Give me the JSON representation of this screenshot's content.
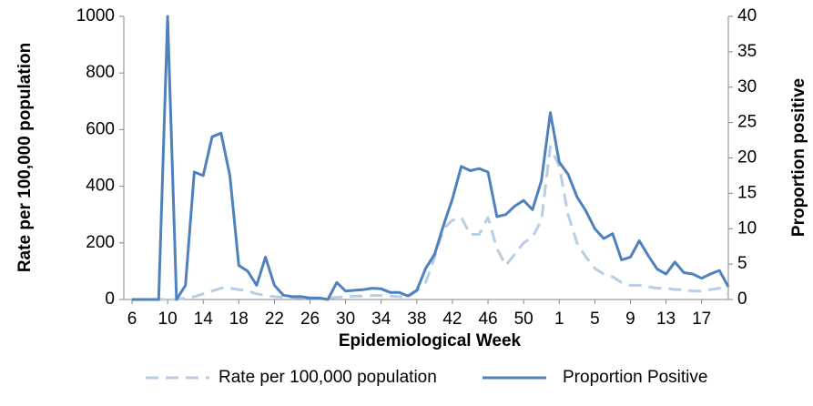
{
  "chart_data": {
    "type": "line",
    "x_label": "Epidemiological Week",
    "y_label": "Rate per 100,000 population",
    "y2_label": "Proportion positive",
    "categories": [
      "6",
      null,
      null,
      null,
      "10",
      null,
      null,
      null,
      "14",
      null,
      null,
      null,
      "18",
      null,
      null,
      null,
      "22",
      null,
      null,
      null,
      "26",
      null,
      null,
      null,
      "30",
      null,
      null,
      null,
      "34",
      null,
      null,
      null,
      "38",
      null,
      null,
      null,
      "42",
      null,
      null,
      null,
      "46",
      null,
      null,
      null,
      "50",
      null,
      null,
      null,
      "1",
      null,
      null,
      null,
      "5",
      null,
      null,
      null,
      "9",
      null,
      null,
      null,
      "13",
      null,
      null,
      null,
      "17",
      null,
      null,
      null
    ],
    "series": [
      {
        "name": "Rate per 100,000 population",
        "color": "#b9cde5",
        "dashed": true,
        "values": [
          0,
          0,
          0,
          0,
          0,
          0,
          5,
          10,
          20,
          30,
          40,
          40,
          35,
          30,
          20,
          15,
          10,
          8,
          8,
          6,
          6,
          5,
          5,
          8,
          10,
          12,
          12,
          14,
          14,
          12,
          10,
          8,
          30,
          60,
          150,
          250,
          280,
          290,
          230,
          230,
          290,
          180,
          120,
          160,
          200,
          220,
          280,
          540,
          470,
          300,
          200,
          150,
          110,
          90,
          80,
          60,
          50,
          50,
          45,
          40,
          40,
          35,
          35,
          30,
          30,
          35,
          40,
          20
        ]
      },
      {
        "name": "Proportion Positive",
        "color": "#4f81bd",
        "dashed": false,
        "axis": "y2",
        "values": [
          0,
          0,
          0,
          0,
          40,
          0,
          2,
          18,
          17.5,
          23,
          23.5,
          17.5,
          4.8,
          4,
          2,
          6,
          2,
          0.6,
          0.4,
          0.4,
          0.2,
          0.2,
          0,
          2.4,
          1.2,
          1.3,
          1.4,
          1.6,
          1.5,
          1,
          1,
          0.5,
          1.3,
          4.4,
          6.4,
          10.5,
          14.2,
          18.8,
          18.2,
          18.5,
          18,
          11.7,
          12,
          13.2,
          14,
          12.7,
          16.8,
          26.4,
          19.4,
          17.7,
          14.5,
          12.5,
          10,
          8.6,
          9.3,
          5.6,
          6,
          8.3,
          6.2,
          4.3,
          3.6,
          5.3,
          3.8,
          3.6,
          3,
          3.6,
          4.1,
          1.8
        ]
      }
    ],
    "ylim": [
      0,
      1000
    ],
    "yticks": [
      0,
      200,
      400,
      600,
      800,
      1000
    ],
    "y2lim": [
      0,
      40
    ],
    "y2ticks": [
      0,
      5,
      10,
      15,
      20,
      25,
      30,
      35,
      40
    ],
    "legend": "bottom"
  }
}
